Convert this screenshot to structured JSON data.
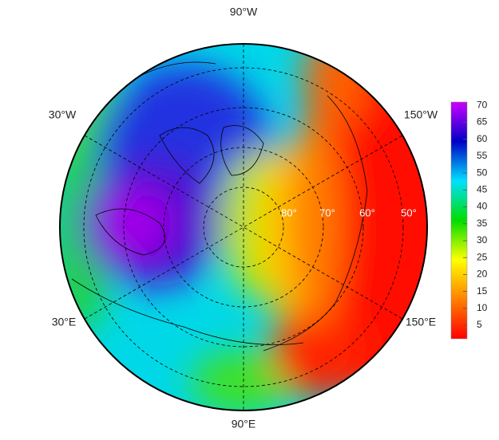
{
  "map": {
    "longitude_labels": [
      "90°W",
      "30°W",
      "150°W",
      "30°E",
      "150°E",
      "90°E"
    ],
    "latitude_labels": [
      "80°",
      "70°",
      "60°",
      "50°"
    ]
  },
  "colorbar": {
    "lim": [
      1,
      71
    ],
    "ticks": [
      5,
      10,
      15,
      20,
      25,
      30,
      35,
      40,
      45,
      50,
      55,
      60,
      65,
      70
    ],
    "colors": [
      "#ff0000",
      "#ff8000",
      "#ffff00",
      "#00dd00",
      "#00e0ff",
      "#0000c8",
      "#cc00ff"
    ]
  }
}
